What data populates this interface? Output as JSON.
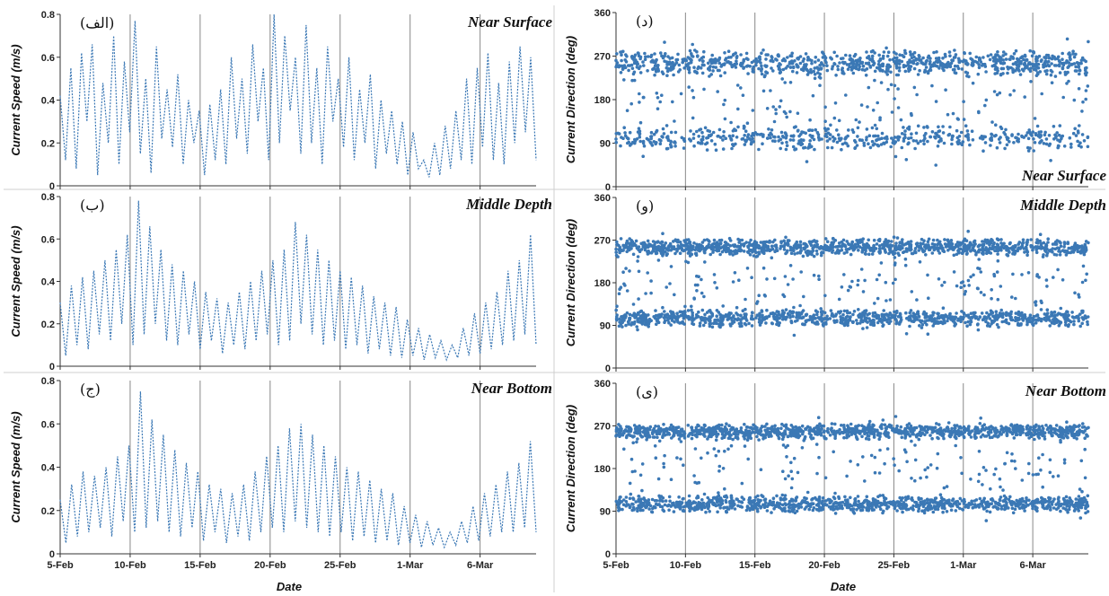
{
  "chart_data": [
    {
      "id": "a",
      "type": "line",
      "panel_label": "الف",
      "title": "Near Surface",
      "ylabel": "Current Speed (m/s)",
      "xlabel": "",
      "ylim": [
        0,
        0.8
      ],
      "yticks": [
        "0",
        "0.2",
        "0.4",
        "0.6",
        "0.8"
      ],
      "xticks": [
        "5-Feb",
        "10-Feb",
        "15-Feb",
        "20-Feb",
        "25-Feb",
        "1-Mar",
        "6-Mar"
      ],
      "xrange_days": [
        0,
        34
      ],
      "series": [
        {
          "values": [
            0.42,
            0.12,
            0.55,
            0.08,
            0.62,
            0.3,
            0.66,
            0.05,
            0.48,
            0.2,
            0.7,
            0.1,
            0.58,
            0.25,
            0.77,
            0.15,
            0.5,
            0.06,
            0.65,
            0.22,
            0.45,
            0.18,
            0.52,
            0.1,
            0.4,
            0.2,
            0.35,
            0.05,
            0.38,
            0.12,
            0.45,
            0.1,
            0.6,
            0.22,
            0.5,
            0.15,
            0.66,
            0.3,
            0.55,
            0.12,
            0.8,
            0.2,
            0.7,
            0.35,
            0.6,
            0.15,
            0.75,
            0.2,
            0.55,
            0.1,
            0.65,
            0.3,
            0.5,
            0.18,
            0.6,
            0.12,
            0.45,
            0.2,
            0.52,
            0.08,
            0.4,
            0.15,
            0.35,
            0.1,
            0.3,
            0.05,
            0.25,
            0.08,
            0.12,
            0.04,
            0.2,
            0.05,
            0.28,
            0.08,
            0.35,
            0.12,
            0.5,
            0.1,
            0.55,
            0.18,
            0.62,
            0.12,
            0.48,
            0.1,
            0.58,
            0.2,
            0.65,
            0.25,
            0.6,
            0.12
          ]
        }
      ]
    },
    {
      "id": "b",
      "type": "line",
      "panel_label": "ب",
      "title": "Middle Depth",
      "ylabel": "Current Speed (m/s)",
      "xlabel": "",
      "ylim": [
        0,
        0.8
      ],
      "yticks": [
        "0",
        "0.2",
        "0.4",
        "0.6",
        "0.8"
      ],
      "xticks": [
        "5-Feb",
        "10-Feb",
        "15-Feb",
        "20-Feb",
        "25-Feb",
        "1-Mar",
        "6-Mar"
      ],
      "xrange_days": [
        0,
        34
      ],
      "series": [
        {
          "values": [
            0.3,
            0.05,
            0.38,
            0.1,
            0.42,
            0.08,
            0.45,
            0.15,
            0.5,
            0.12,
            0.55,
            0.2,
            0.62,
            0.1,
            0.78,
            0.15,
            0.66,
            0.2,
            0.55,
            0.12,
            0.48,
            0.1,
            0.45,
            0.15,
            0.4,
            0.08,
            0.35,
            0.12,
            0.32,
            0.06,
            0.3,
            0.1,
            0.35,
            0.08,
            0.4,
            0.12,
            0.45,
            0.15,
            0.5,
            0.1,
            0.55,
            0.12,
            0.68,
            0.2,
            0.62,
            0.15,
            0.55,
            0.1,
            0.5,
            0.12,
            0.45,
            0.08,
            0.42,
            0.1,
            0.38,
            0.06,
            0.33,
            0.08,
            0.3,
            0.05,
            0.28,
            0.04,
            0.22,
            0.05,
            0.18,
            0.03,
            0.15,
            0.04,
            0.12,
            0.03,
            0.1,
            0.04,
            0.18,
            0.05,
            0.25,
            0.06,
            0.3,
            0.08,
            0.35,
            0.1,
            0.45,
            0.12,
            0.5,
            0.15,
            0.62,
            0.1
          ]
        }
      ]
    },
    {
      "id": "c",
      "type": "line",
      "panel_label": "ج",
      "title": "Near Bottom",
      "ylabel": "Current Speed (m/s)",
      "xlabel": "Date",
      "ylim": [
        0,
        0.8
      ],
      "yticks": [
        "0",
        "0.2",
        "0.4",
        "0.6",
        "0.8"
      ],
      "xticks": [
        "5-Feb",
        "10-Feb",
        "15-Feb",
        "20-Feb",
        "25-Feb",
        "1-Mar",
        "6-Mar"
      ],
      "xrange_days": [
        0,
        34
      ],
      "series": [
        {
          "values": [
            0.25,
            0.05,
            0.32,
            0.08,
            0.38,
            0.1,
            0.36,
            0.12,
            0.4,
            0.08,
            0.45,
            0.15,
            0.5,
            0.1,
            0.75,
            0.12,
            0.62,
            0.15,
            0.55,
            0.1,
            0.48,
            0.08,
            0.42,
            0.12,
            0.38,
            0.06,
            0.32,
            0.1,
            0.3,
            0.05,
            0.28,
            0.08,
            0.32,
            0.06,
            0.38,
            0.1,
            0.45,
            0.12,
            0.5,
            0.1,
            0.58,
            0.15,
            0.6,
            0.12,
            0.55,
            0.1,
            0.5,
            0.08,
            0.45,
            0.1,
            0.4,
            0.06,
            0.38,
            0.08,
            0.34,
            0.05,
            0.3,
            0.06,
            0.28,
            0.04,
            0.22,
            0.05,
            0.18,
            0.03,
            0.15,
            0.04,
            0.12,
            0.03,
            0.1,
            0.04,
            0.15,
            0.05,
            0.22,
            0.06,
            0.28,
            0.08,
            0.32,
            0.1,
            0.38,
            0.1,
            0.42,
            0.12,
            0.52,
            0.1
          ]
        }
      ]
    },
    {
      "id": "d",
      "type": "scatter",
      "panel_label": "د",
      "title": "Near Surface",
      "ylabel": "Current Direction (deg)",
      "xlabel": "",
      "ylim": [
        0,
        360
      ],
      "yticks": [
        "0",
        "90",
        "180",
        "270",
        "360"
      ],
      "xticks": [
        "5-Feb",
        "10-Feb",
        "15-Feb",
        "20-Feb",
        "25-Feb",
        "1-Mar",
        "6-Mar"
      ],
      "xrange_days": [
        0,
        34
      ],
      "clusters": [
        {
          "y": 255,
          "spread": 14,
          "density": 26
        },
        {
          "y": 100,
          "spread": 14,
          "density": 15
        },
        {
          "y": 180,
          "spread": 70,
          "density": 6
        }
      ]
    },
    {
      "id": "e",
      "type": "scatter",
      "panel_label": "و",
      "title": "Middle Depth",
      "ylabel": "Current Direction (deg)",
      "xlabel": "",
      "ylim": [
        0,
        360
      ],
      "yticks": [
        "0",
        "90",
        "180",
        "270",
        "360"
      ],
      "xticks": [
        "5-Feb",
        "10-Feb",
        "15-Feb",
        "20-Feb",
        "25-Feb",
        "1-Mar",
        "6-Mar"
      ],
      "xrange_days": [
        0,
        34
      ],
      "clusters": [
        {
          "y": 255,
          "spread": 10,
          "density": 32
        },
        {
          "y": 105,
          "spread": 10,
          "density": 28
        },
        {
          "y": 180,
          "spread": 60,
          "density": 7
        }
      ]
    },
    {
      "id": "f",
      "type": "scatter",
      "panel_label": "ی",
      "title": "Near Bottom",
      "ylabel": "Current Direction (deg)",
      "xlabel": "Date",
      "ylim": [
        0,
        360
      ],
      "yticks": [
        "0",
        "90",
        "180",
        "270",
        "360"
      ],
      "xticks": [
        "5-Feb",
        "10-Feb",
        "15-Feb",
        "20-Feb",
        "25-Feb",
        "1-Mar",
        "6-Mar"
      ],
      "xrange_days": [
        0,
        34
      ],
      "clusters": [
        {
          "y": 258,
          "spread": 9,
          "density": 34
        },
        {
          "y": 105,
          "spread": 10,
          "density": 30
        },
        {
          "y": 180,
          "spread": 60,
          "density": 6
        }
      ]
    }
  ],
  "colors": {
    "series": "#3b78b5",
    "gridline": "#888888",
    "axis": "#333333"
  }
}
